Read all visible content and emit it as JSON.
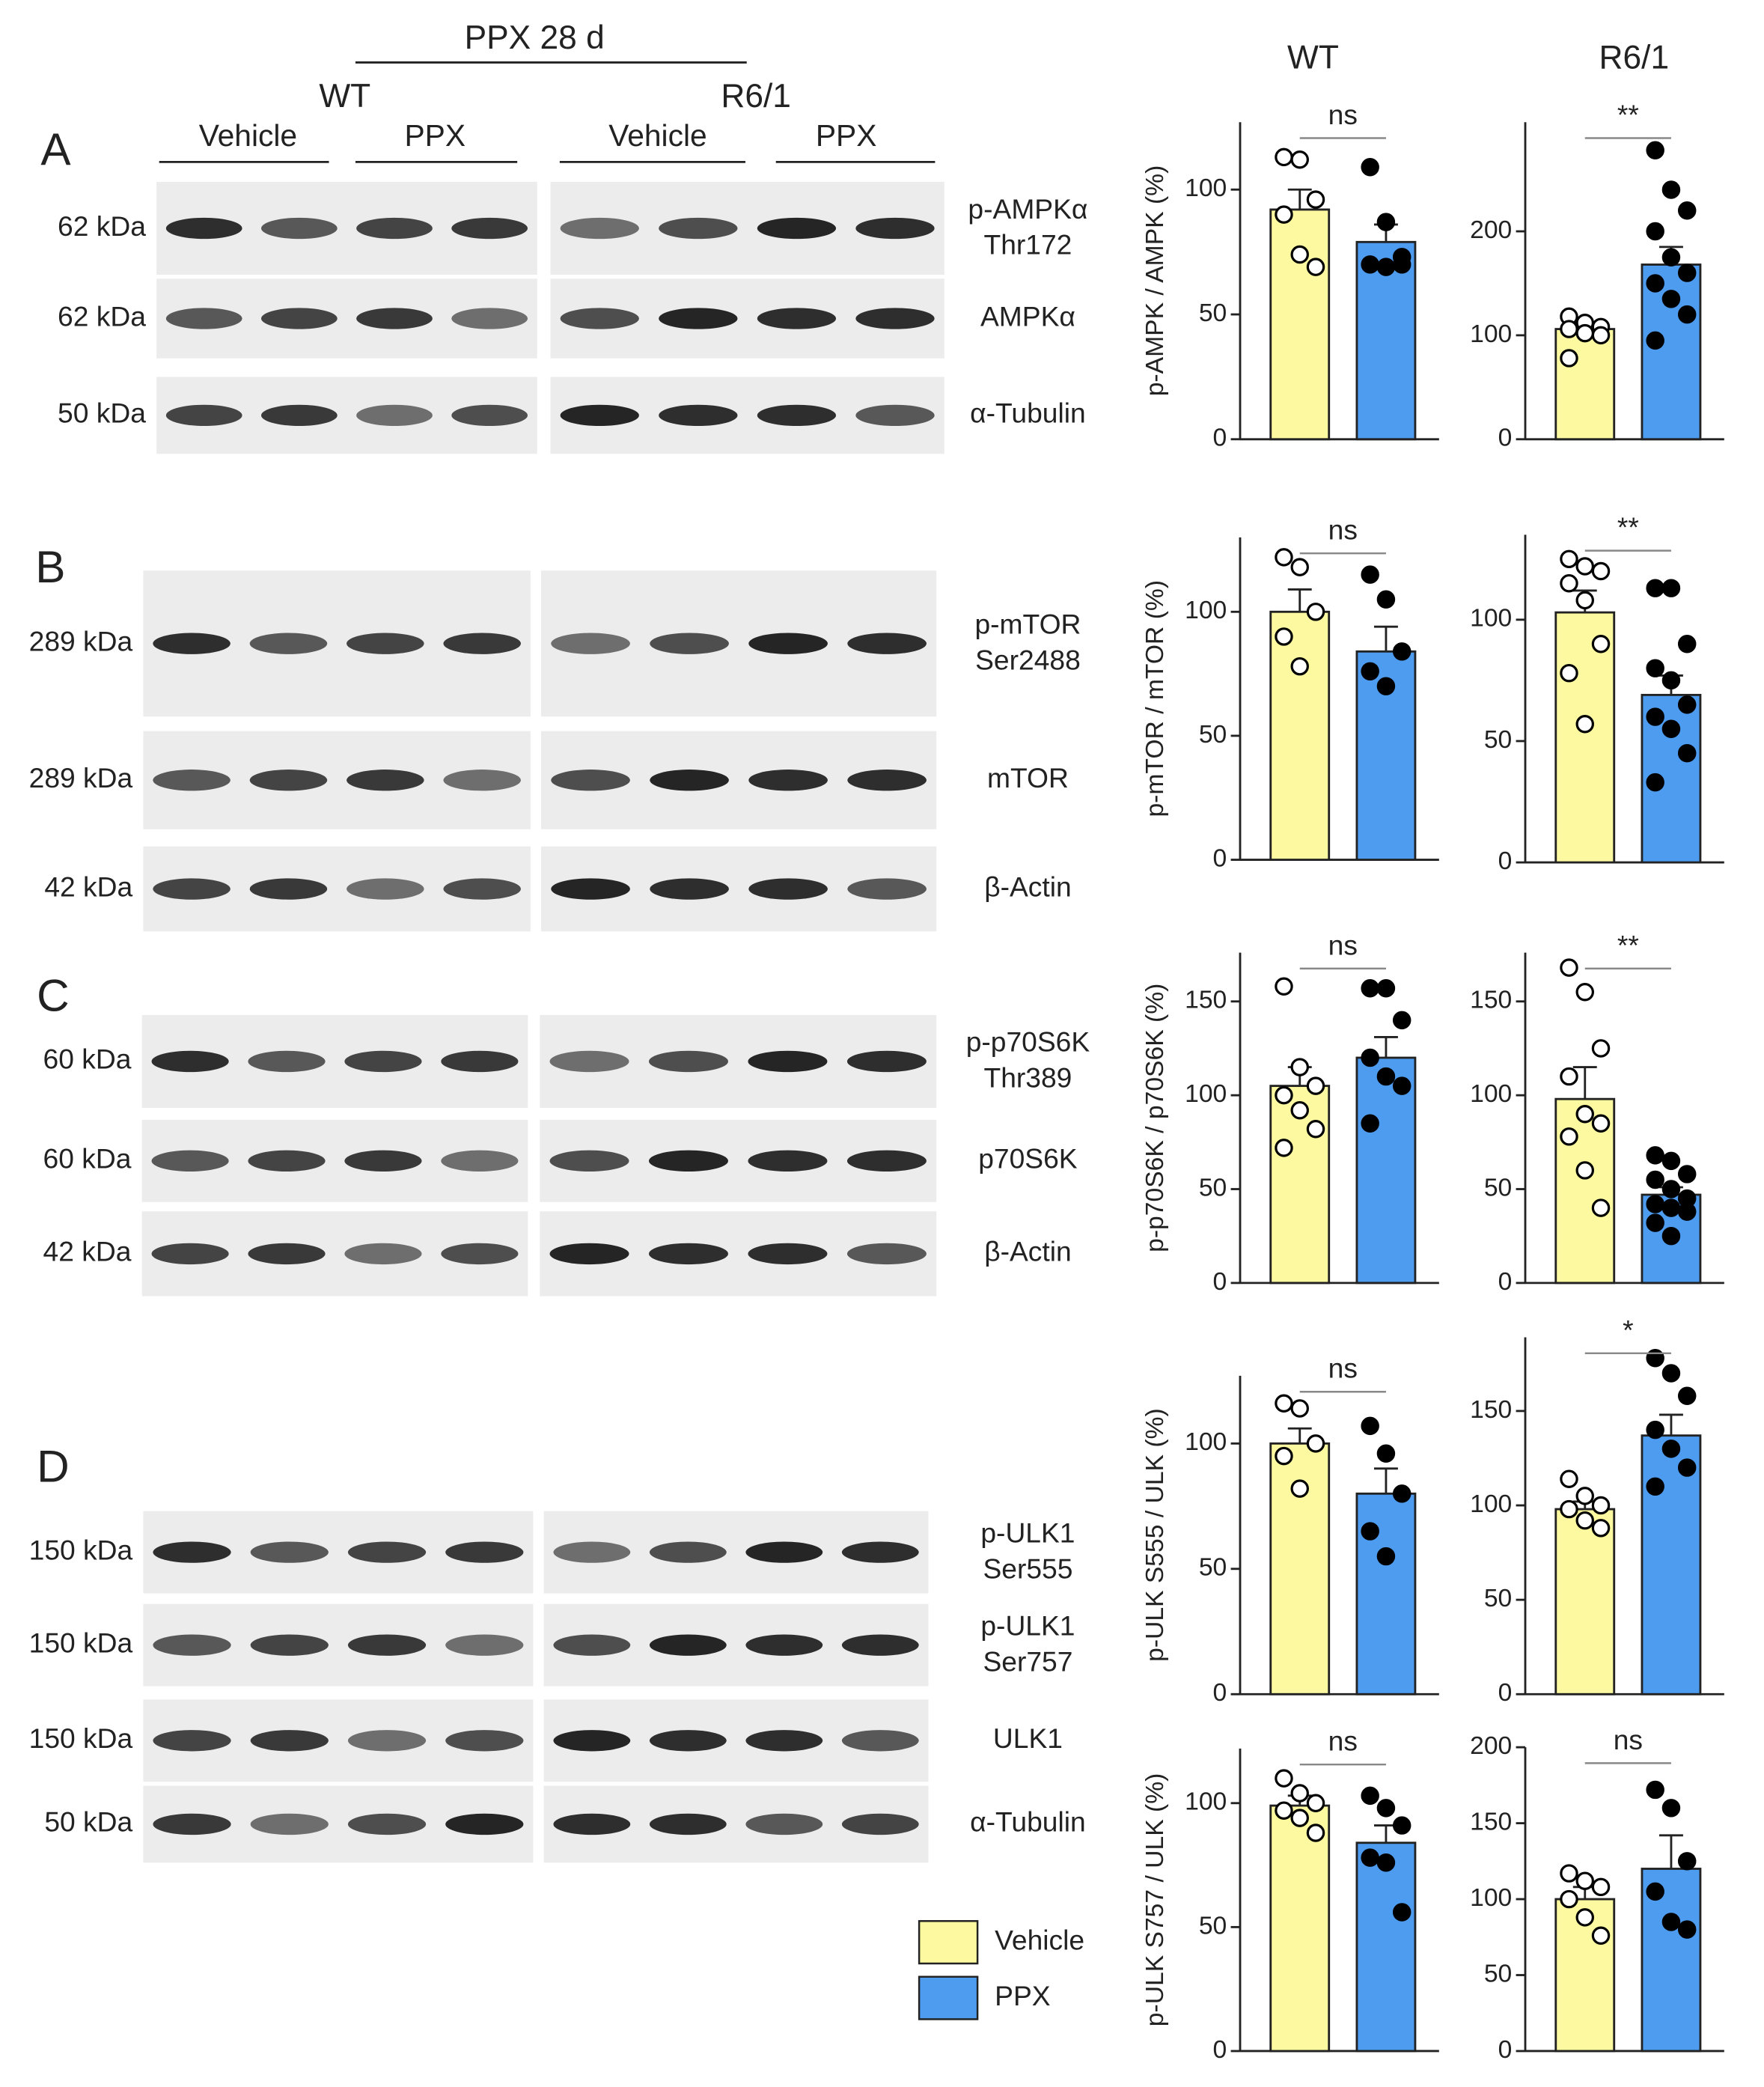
{
  "header": {
    "treatment": "PPX 28 d",
    "groups": [
      "WT",
      "R6/1"
    ],
    "lanes": [
      "Vehicle",
      "PPX",
      "Vehicle",
      "PPX"
    ]
  },
  "blots": [
    {
      "panel": "A",
      "rows": [
        {
          "kda": "62 kDa",
          "protein": [
            "p-AMPKα",
            "Thr172"
          ]
        },
        {
          "kda": "62 kDa",
          "protein": [
            "AMPKα"
          ]
        },
        {
          "kda": "50 kDa",
          "protein": [
            "α-Tubulin"
          ]
        }
      ]
    },
    {
      "panel": "B",
      "rows": [
        {
          "kda": "289 kDa",
          "protein": [
            "p-mTOR",
            "Ser2488"
          ]
        },
        {
          "kda": "289 kDa",
          "protein": [
            "mTOR"
          ]
        },
        {
          "kda": "42 kDa",
          "protein": [
            "β-Actin"
          ]
        }
      ]
    },
    {
      "panel": "C",
      "rows": [
        {
          "kda": "60 kDa",
          "protein": [
            "p-p70S6K",
            "Thr389"
          ]
        },
        {
          "kda": "60 kDa",
          "protein": [
            "p70S6K"
          ]
        },
        {
          "kda": "42 kDa",
          "protein": [
            "β-Actin"
          ]
        }
      ]
    },
    {
      "panel": "D",
      "rows": [
        {
          "kda": "150 kDa",
          "protein": [
            "p-ULK1",
            "Ser555"
          ]
        },
        {
          "kda": "150 kDa",
          "protein": [
            "p-ULK1",
            "Ser757"
          ]
        },
        {
          "kda": "150 kDa",
          "protein": [
            "ULK1"
          ]
        },
        {
          "kda": "50 kDa",
          "protein": [
            "α-Tubulin"
          ]
        }
      ]
    }
  ],
  "columns": [
    "WT",
    "R6/1"
  ],
  "legend": [
    {
      "name": "Vehicle",
      "color": "#fcf9a0"
    },
    {
      "name": "PPX",
      "color": "#4d9cf0"
    }
  ],
  "chart_data": [
    {
      "type": "bar",
      "ylabel": "p-AMPK / AMPK (%)",
      "ylim": [
        0,
        127
      ],
      "yticks": [
        0,
        50,
        100
      ],
      "values": [
        92,
        79
      ],
      "errors": [
        8,
        7
      ],
      "points": [
        [
          113,
          112,
          96,
          90,
          74,
          69
        ],
        [
          109,
          87,
          73,
          70,
          69,
          70
        ]
      ],
      "significance": "ns"
    },
    {
      "type": "bar",
      "ylim": [
        0,
        305
      ],
      "yticks": [
        0,
        100,
        200
      ],
      "values": [
        106,
        168
      ],
      "errors": [
        6,
        17
      ],
      "points": [
        [
          118,
          112,
          108,
          106,
          102,
          100,
          78
        ],
        [
          278,
          240,
          220,
          200,
          175,
          160,
          150,
          135,
          120,
          95
        ]
      ],
      "significance": "**"
    },
    {
      "type": "bar",
      "ylabel": "p-mTOR / mTOR (%)",
      "ylim": [
        0,
        130
      ],
      "yticks": [
        0,
        50,
        100
      ],
      "values": [
        100,
        84
      ],
      "errors": [
        9,
        10
      ],
      "points": [
        [
          122,
          118,
          100,
          90,
          78
        ],
        [
          115,
          105,
          84,
          76,
          70
        ]
      ],
      "significance": "ns"
    },
    {
      "type": "bar",
      "ylim": [
        0,
        135
      ],
      "yticks": [
        0,
        50,
        100
      ],
      "values": [
        103,
        69
      ],
      "errors": [
        9,
        8
      ],
      "points": [
        [
          125,
          122,
          120,
          115,
          108,
          90,
          78,
          57
        ],
        [
          113,
          113,
          90,
          80,
          75,
          65,
          60,
          55,
          45,
          33
        ]
      ],
      "significance": "**"
    },
    {
      "type": "bar",
      "ylabel": "p-p70S6K / p70S6K (%)",
      "ylim": [
        0,
        176
      ],
      "yticks": [
        0,
        50,
        100,
        150
      ],
      "values": [
        105,
        120
      ],
      "errors": [
        10,
        11
      ],
      "points": [
        [
          158,
          115,
          105,
          100,
          92,
          82,
          72
        ],
        [
          157,
          157,
          140,
          120,
          110,
          105,
          85
        ]
      ],
      "significance": "ns"
    },
    {
      "type": "bar",
      "ylim": [
        0,
        176
      ],
      "yticks": [
        0,
        50,
        100,
        150
      ],
      "values": [
        98,
        47
      ],
      "errors": [
        17,
        4
      ],
      "points": [
        [
          168,
          155,
          125,
          110,
          90,
          85,
          78,
          60,
          40
        ],
        [
          68,
          65,
          58,
          55,
          50,
          45,
          42,
          40,
          38,
          32,
          25
        ]
      ],
      "significance": "**"
    },
    {
      "type": "bar",
      "ylabel": "p-ULK S555 / ULK (%)",
      "ylim": [
        0,
        127
      ],
      "yticks": [
        0,
        50,
        100
      ],
      "values": [
        100,
        80
      ],
      "errors": [
        6,
        10
      ],
      "points": [
        [
          116,
          114,
          100,
          95,
          82
        ],
        [
          107,
          96,
          80,
          65,
          55
        ]
      ],
      "significance": "ns"
    },
    {
      "type": "bar",
      "ylim": [
        0,
        189
      ],
      "yticks": [
        0,
        50,
        100,
        150
      ],
      "values": [
        98,
        137
      ],
      "errors": [
        4,
        11
      ],
      "points": [
        [
          114,
          105,
          100,
          98,
          92,
          88
        ],
        [
          178,
          170,
          158,
          140,
          130,
          120,
          110
        ]
      ],
      "significance": "*"
    },
    {
      "type": "bar",
      "ylabel": "p-ULK S757 / ULK (%)",
      "ylim": [
        0,
        122
      ],
      "yticks": [
        0,
        50,
        100
      ],
      "values": [
        99,
        84
      ],
      "errors": [
        4,
        7
      ],
      "points": [
        [
          110,
          104,
          100,
          97,
          94,
          88
        ],
        [
          103,
          98,
          91,
          78,
          76,
          56
        ]
      ],
      "significance": "ns"
    },
    {
      "type": "bar",
      "ylim": [
        0,
        200
      ],
      "yticks": [
        0,
        50,
        100,
        150,
        200
      ],
      "values": [
        100,
        120
      ],
      "errors": [
        8,
        22
      ],
      "points": [
        [
          117,
          112,
          108,
          100,
          88,
          76
        ],
        [
          172,
          160,
          125,
          105,
          85,
          80
        ]
      ],
      "significance": "ns"
    }
  ]
}
